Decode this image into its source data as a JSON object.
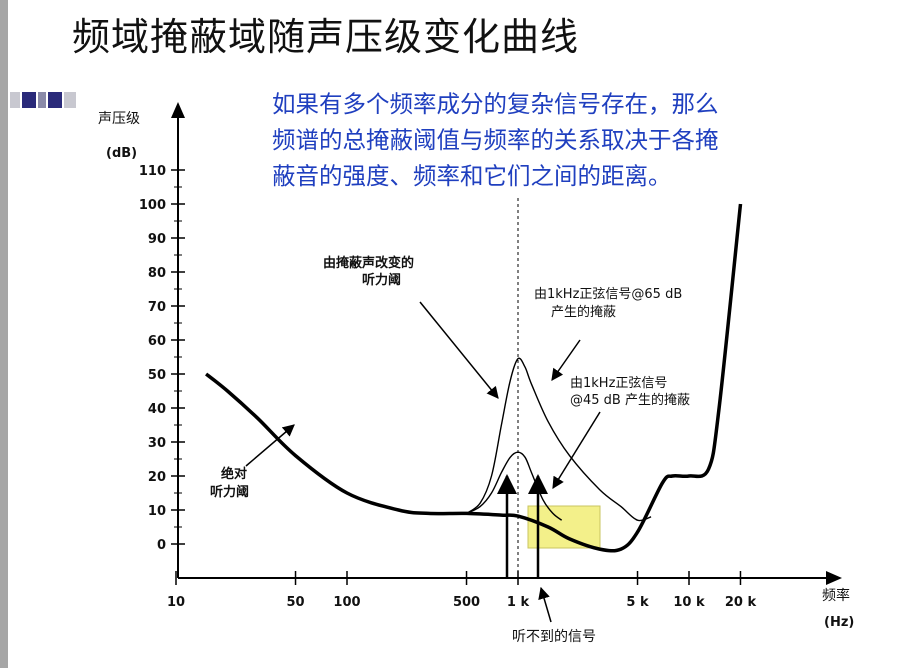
{
  "slide": {
    "title": "频域掩蔽域随声压级变化曲线",
    "description_lines": [
      "如果有多个频率成分的复杂信号存在，那么",
      "频谱的总掩蔽阈值与频率的关系取决于各掩",
      "蔽音的强度、频率和它们之间的距离。"
    ]
  },
  "colors": {
    "description": "#1f3fbf",
    "highlight": "#f3f08a",
    "curve": "#000000"
  },
  "chart_data": {
    "type": "line",
    "y_axis": {
      "label_lines": [
        "声压级",
        "(dB)"
      ],
      "range": [
        0,
        110
      ],
      "ticks": [
        0,
        10,
        20,
        30,
        40,
        50,
        60,
        70,
        80,
        90,
        100,
        110
      ]
    },
    "x_axis": {
      "label_lines": [
        "频率",
        "(Hz)"
      ],
      "scale": "log",
      "range_hz": [
        10,
        20000
      ],
      "tick_labels": [
        "10",
        "50",
        "100",
        "500",
        "1 k",
        "5 k",
        "10 k",
        "20 k"
      ],
      "tick_values_hz": [
        10,
        50,
        100,
        500,
        1000,
        5000,
        10000,
        20000
      ]
    },
    "series": [
      {
        "key": "abs",
        "x": [
          15,
          20,
          30,
          50,
          100,
          200,
          300,
          500,
          800,
          1000,
          1500,
          2000,
          3000,
          4000,
          5000,
          7000,
          8000,
          10000,
          13000,
          15000,
          20000
        ],
        "y": [
          50,
          45,
          37,
          26,
          15,
          10,
          9,
          9,
          8.5,
          8.2,
          5,
          1.5,
          -1.5,
          -1.5,
          3.5,
          18,
          20,
          20,
          22,
          40,
          100
        ]
      },
      {
        "key": "m65",
        "x": [
          500,
          600,
          700,
          800,
          900,
          1000,
          1100,
          1200,
          1500,
          2000,
          3000,
          4000,
          5000,
          6000
        ],
        "y": [
          9,
          12,
          20,
          35,
          48,
          54.5,
          52,
          47,
          36,
          26,
          16,
          11,
          7,
          8
        ]
      },
      {
        "key": "m45",
        "x": [
          500,
          600,
          700,
          800,
          900,
          1000,
          1100,
          1200,
          1400,
          1600,
          1800
        ],
        "y": [
          9,
          11,
          15,
          21,
          25.5,
          27,
          25.5,
          21,
          13,
          9,
          7
        ]
      }
    ],
    "annotations": {
      "masked_threshold": [
        "由掩蔽声改变的",
        "听力阈"
      ],
      "masking_65": [
        "由1kHz正弦信号@65 dB",
        "产生的掩蔽"
      ],
      "masking_45": [
        "由1kHz正弦信号",
        "@45 dB 产生的掩蔽"
      ],
      "absolute_threshold": [
        "绝对",
        "听力阈"
      ],
      "inaudible": "听不到的信号"
    }
  }
}
